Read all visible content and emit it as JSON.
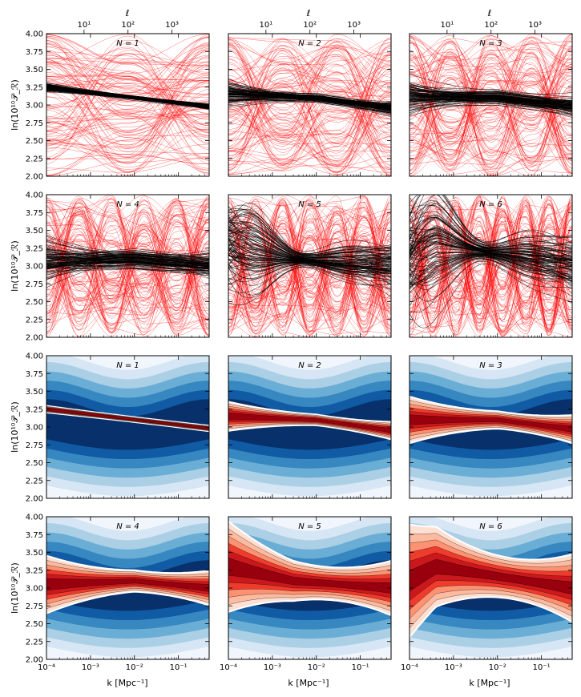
{
  "figure": {
    "ylabel": "ln(10¹⁰𝒫_ℛ)",
    "xlabel": "k   [Mpc⁻¹]",
    "top_axis_label": "ℓ",
    "top_ticks": [
      "10¹",
      "10²",
      "10³"
    ],
    "x_ticks": [
      "10⁻⁴",
      "10⁻³",
      "10⁻²",
      "10⁻¹"
    ],
    "y_ticks": [
      "2.00",
      "2.25",
      "2.50",
      "2.75",
      "3.00",
      "3.25",
      "3.50",
      "3.75",
      "4.00"
    ],
    "colors": {
      "prior_lines": "#ff0000",
      "posterior_lines": "#000000",
      "prior_contours": "Blues",
      "posterior_contours": "Reds"
    }
  },
  "chart_data": [
    {
      "panel": "samples",
      "type": "line",
      "title": "N = 1",
      "N": 1,
      "xlim": [
        "1e-4",
        "0.5"
      ],
      "ylim": [
        2.0,
        4.0
      ],
      "posterior_band": {
        "x": [
          0.0001,
          0.5
        ],
        "center": [
          3.25,
          2.98
        ],
        "width": 0.05
      },
      "prior_spread": [
        2.0,
        4.0
      ]
    },
    {
      "panel": "samples",
      "type": "line",
      "title": "N = 2",
      "N": 2,
      "xlim": [
        "1e-4",
        "0.5"
      ],
      "ylim": [
        2.0,
        4.0
      ],
      "posterior_band": {
        "x": [
          0.0001,
          0.01,
          0.5
        ],
        "center": [
          3.15,
          3.1,
          2.95
        ],
        "width": 0.12
      },
      "prior_spread": [
        2.0,
        4.0
      ]
    },
    {
      "panel": "samples",
      "type": "line",
      "title": "N = 3",
      "N": 3,
      "xlim": [
        "1e-4",
        "0.5"
      ],
      "ylim": [
        2.0,
        4.0
      ],
      "posterior_band": {
        "x": [
          0.0001,
          0.01,
          0.5
        ],
        "center": [
          3.1,
          3.1,
          2.97
        ],
        "width": 0.2
      },
      "prior_spread": [
        2.0,
        4.0
      ]
    },
    {
      "panel": "samples",
      "type": "line",
      "title": "N = 4",
      "N": 4,
      "xlim": [
        "1e-4",
        "0.5"
      ],
      "ylim": [
        2.0,
        4.0
      ],
      "posterior_band": {
        "x": [
          0.0001,
          0.01,
          0.5
        ],
        "center": [
          3.05,
          3.1,
          3.0
        ],
        "width": 0.25
      },
      "prior_spread": [
        2.0,
        4.0
      ]
    },
    {
      "panel": "samples",
      "type": "line",
      "title": "N = 5",
      "N": 5,
      "xlim": [
        "1e-4",
        "0.5"
      ],
      "ylim": [
        2.0,
        4.0
      ],
      "posterior_band": {
        "x": [
          0.0001,
          0.003,
          0.5
        ],
        "center": [
          3.3,
          3.1,
          3.0
        ],
        "width": 0.4
      },
      "prior_spread": [
        2.0,
        4.0
      ]
    },
    {
      "panel": "samples",
      "type": "line",
      "title": "N = 6",
      "N": 6,
      "xlim": [
        "1e-4",
        "0.5"
      ],
      "ylim": [
        2.0,
        4.0
      ],
      "posterior_band": {
        "x": [
          0.0001,
          0.0004,
          0.5
        ],
        "center": [
          3.1,
          3.3,
          3.0
        ],
        "width": 0.5
      },
      "prior_spread": [
        2.0,
        4.0
      ]
    },
    {
      "panel": "contours",
      "type": "heatmap",
      "title": "N = 1",
      "N": 1,
      "xlim": [
        "1e-4",
        "0.5"
      ],
      "ylim": [
        2.0,
        4.0
      ]
    },
    {
      "panel": "contours",
      "type": "heatmap",
      "title": "N = 2",
      "N": 2,
      "xlim": [
        "1e-4",
        "0.5"
      ],
      "ylim": [
        2.0,
        4.0
      ]
    },
    {
      "panel": "contours",
      "type": "heatmap",
      "title": "N = 3",
      "N": 3,
      "xlim": [
        "1e-4",
        "0.5"
      ],
      "ylim": [
        2.0,
        4.0
      ]
    },
    {
      "panel": "contours",
      "type": "heatmap",
      "title": "N = 4",
      "N": 4,
      "xlim": [
        "1e-4",
        "0.5"
      ],
      "ylim": [
        2.0,
        4.0
      ]
    },
    {
      "panel": "contours",
      "type": "heatmap",
      "title": "N = 5",
      "N": 5,
      "xlim": [
        "1e-4",
        "0.5"
      ],
      "ylim": [
        2.0,
        4.0
      ]
    },
    {
      "panel": "contours",
      "type": "heatmap",
      "title": "N = 6",
      "N": 6,
      "xlim": [
        "1e-4",
        "0.5"
      ],
      "ylim": [
        2.0,
        4.0
      ]
    }
  ]
}
